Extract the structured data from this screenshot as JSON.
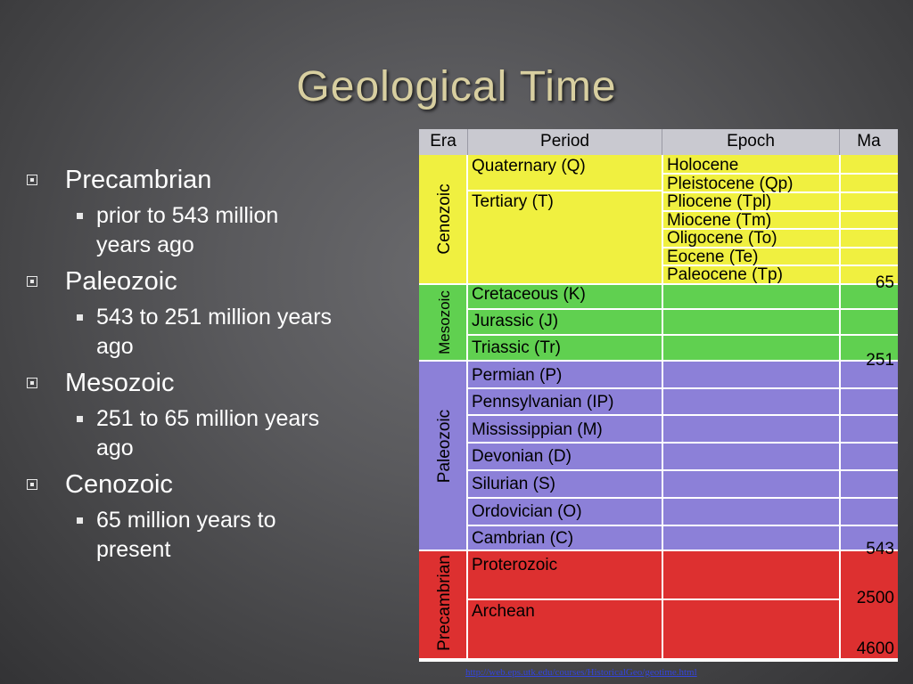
{
  "title": "Geological Time",
  "bullets": [
    {
      "label": "Precambrian",
      "sub": [
        "prior to 543 million",
        "years ago"
      ]
    },
    {
      "label": "Paleozoic",
      "sub": [
        "543 to 251 million years",
        "ago"
      ]
    },
    {
      "label": "Mesozoic",
      "sub": [
        "251 to 65 million years",
        "ago"
      ]
    },
    {
      "label": "Cenozoic",
      "sub": [
        "65 million years to",
        "present"
      ]
    }
  ],
  "table": {
    "headers": [
      "Era",
      "Period",
      "Epoch",
      "Ma"
    ],
    "eras": [
      "Cenozoic",
      "Mesozoic",
      "Paleozoic",
      "Precambrian"
    ],
    "periods": [
      "Quaternary (Q)",
      "Tertiary (T)",
      "Cretaceous (K)",
      "Jurassic (J)",
      "Triassic (Tr)",
      "Permian (P)",
      "Pennsylvanian (IP)",
      "Mississippian (M)",
      "Devonian (D)",
      "Silurian (S)",
      "Ordovician (O)",
      "Cambrian (C)",
      "Proterozoic",
      "Archean"
    ],
    "epochs": [
      "Holocene",
      "Pleistocene (Qp)",
      "Pliocene (Tpl)",
      "Miocene (Tm)",
      "Oligocene (To)",
      "Eocene (Te)",
      "Paleocene (Tp)"
    ],
    "ma": [
      "65",
      "251",
      "543",
      "2500",
      "4600"
    ],
    "colors": {
      "cenozoic": "#f0f040",
      "mesozoic": "#60d050",
      "paleozoic": "#8c80d8",
      "precambrian": "#dd3030",
      "header": "#c9c9d0"
    }
  },
  "source_link": "http://web.eps.utk.edu/courses/HistoricalGeo/geotime.html"
}
